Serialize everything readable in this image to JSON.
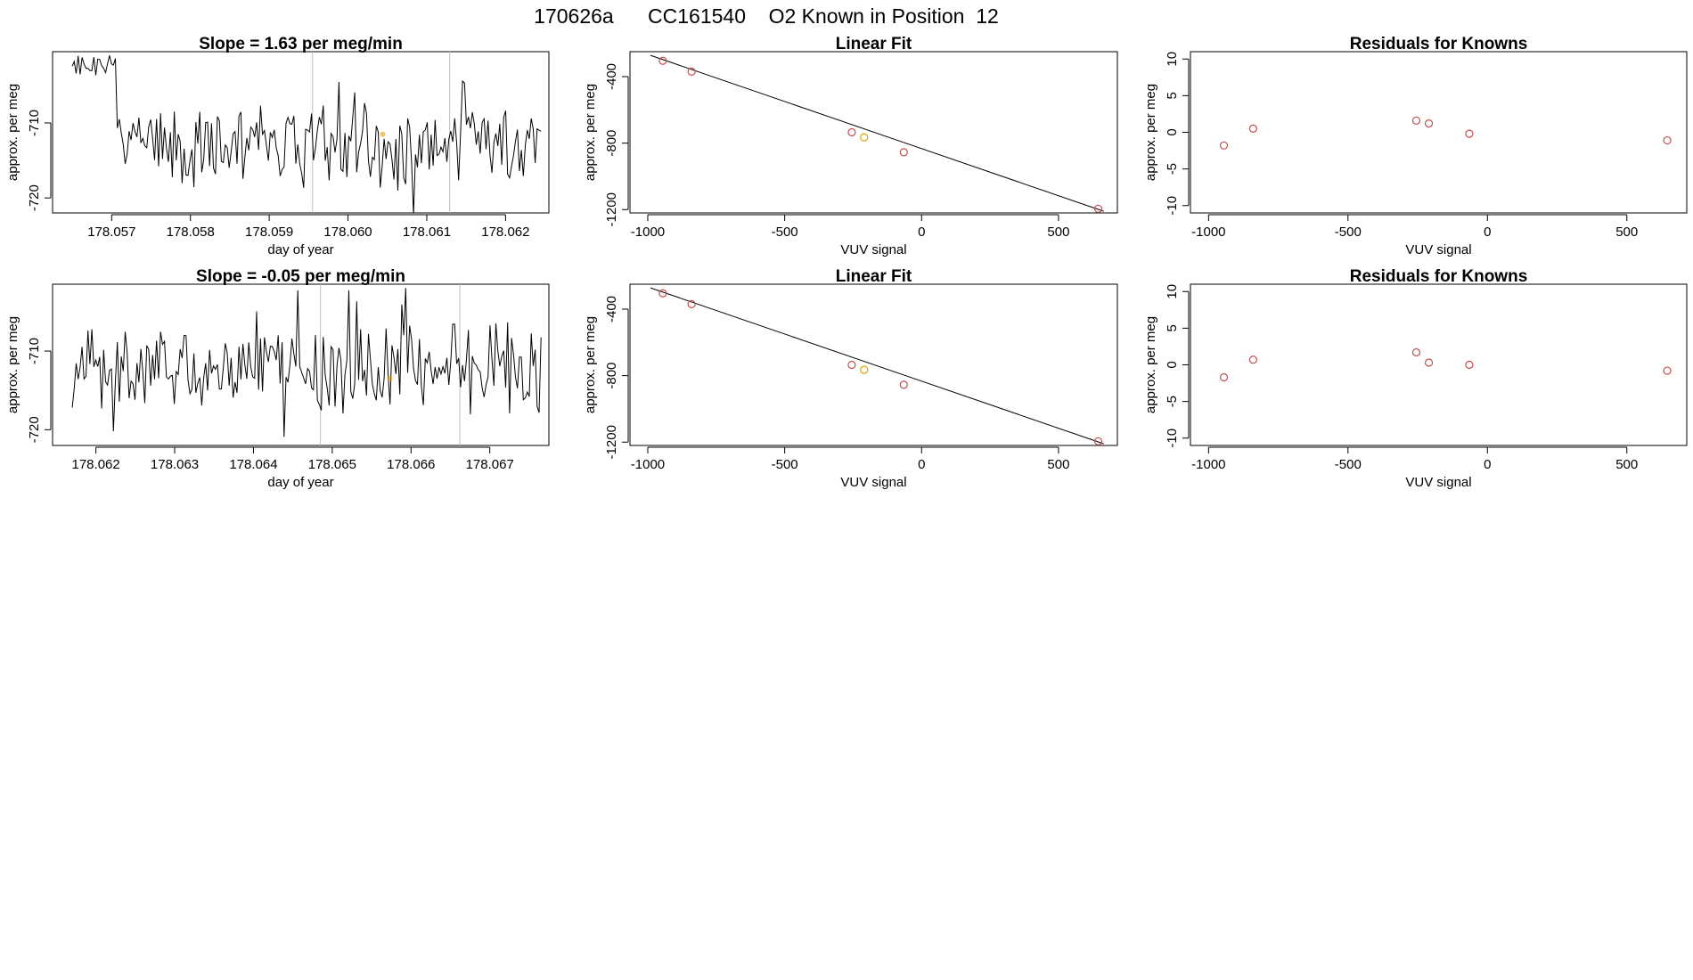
{
  "page_title": "170626a      CC161540    O2 Known in Position  12",
  "colors": {
    "line": "#000000",
    "points": "#c0504d",
    "highlight": "#e69f00",
    "grid": "#bfbfbf"
  },
  "chart_data": [
    {
      "type": "line",
      "title": "Slope =  1.63  per meg/min",
      "xlabel": "day of year",
      "ylabel": "approx. per meg",
      "xlim": [
        178.05625,
        178.06255
      ],
      "ylim": [
        -722,
        -700.5
      ],
      "x_ticks": [
        178.057,
        178.058,
        178.059,
        178.06,
        178.061,
        178.062
      ],
      "x_tick_labels": [
        "178.057",
        "178.058",
        "178.059",
        "178.060",
        "178.061",
        "178.062"
      ],
      "y_ticks": [
        -720,
        -710
      ],
      "y_tick_labels": [
        "-720",
        "-710"
      ],
      "vlines": [
        178.05955,
        178.06129
      ],
      "highlight_point": {
        "x": 178.06044,
        "y": -711.5
      },
      "signal": {
        "x_start": 178.0565,
        "x_end": 178.06245,
        "n": 240,
        "base": -713.2,
        "seed": 7,
        "initial_value": -702.5,
        "initial_span": 0.00055
      }
    },
    {
      "type": "scatter",
      "title": "Linear Fit",
      "xlabel": "VUV signal",
      "ylabel": "approx. per meg",
      "xlim": [
        -1065,
        715
      ],
      "ylim": [
        -1220,
        -250
      ],
      "x_ticks": [
        -1000,
        -500,
        0,
        500
      ],
      "x_tick_labels": [
        "-1000",
        "-500",
        "0",
        "500"
      ],
      "y_ticks": [
        -1200,
        -800,
        -400
      ],
      "y_tick_labels": [
        "-1200",
        "-800",
        "-400"
      ],
      "points": [
        {
          "x": -945,
          "y": -305,
          "highlight": false
        },
        {
          "x": -840,
          "y": -370,
          "highlight": false
        },
        {
          "x": -255,
          "y": -735,
          "highlight": false
        },
        {
          "x": -210,
          "y": -765,
          "highlight": true
        },
        {
          "x": -65,
          "y": -855,
          "highlight": false
        },
        {
          "x": 645,
          "y": -1195,
          "highlight": false
        }
      ],
      "fit_line": {
        "x": [
          -990,
          665
        ],
        "y": [
          -272,
          -1210
        ]
      }
    },
    {
      "type": "scatter",
      "title": "Residuals for Knowns",
      "xlabel": "VUV signal",
      "ylabel": "approx. per meg",
      "xlim": [
        -1065,
        715
      ],
      "ylim": [
        -11,
        11
      ],
      "x_ticks": [
        -1000,
        -500,
        0,
        500
      ],
      "x_tick_labels": [
        "-1000",
        "-500",
        "0",
        "500"
      ],
      "y_ticks": [
        -10,
        -5,
        0,
        5,
        10
      ],
      "y_tick_labels": [
        "-10",
        "-5",
        "0",
        "5",
        "10"
      ],
      "points": [
        {
          "x": -945,
          "y": -1.8
        },
        {
          "x": -840,
          "y": 0.5
        },
        {
          "x": -255,
          "y": 1.6
        },
        {
          "x": -210,
          "y": 1.2
        },
        {
          "x": -65,
          "y": -0.2
        },
        {
          "x": 645,
          "y": -1.1
        }
      ]
    },
    {
      "type": "line",
      "title": "Slope =  -0.05  per meg/min",
      "xlabel": "day of year",
      "ylabel": "approx. per meg",
      "xlim": [
        178.06145,
        178.06775
      ],
      "ylim": [
        -722,
        -701.5
      ],
      "x_ticks": [
        178.062,
        178.063,
        178.064,
        178.065,
        178.066,
        178.067
      ],
      "x_tick_labels": [
        "178.062",
        "178.063",
        "178.064",
        "178.065",
        "178.066",
        "178.067"
      ],
      "y_ticks": [
        -720,
        -710
      ],
      "y_tick_labels": [
        "-720",
        "-710"
      ],
      "vlines": [
        178.06485,
        178.06662
      ],
      "highlight_point": {
        "x": 178.06573,
        "y": -713.5
      },
      "signal": {
        "x_start": 178.0617,
        "x_end": 178.06765,
        "n": 240,
        "base": -712.2,
        "seed": 23,
        "initial_value": -712.5,
        "initial_span": 0
      }
    },
    {
      "type": "scatter",
      "title": "Linear Fit",
      "xlabel": "VUV signal",
      "ylabel": "approx. per meg",
      "xlim": [
        -1065,
        715
      ],
      "ylim": [
        -1220,
        -250
      ],
      "x_ticks": [
        -1000,
        -500,
        0,
        500
      ],
      "x_tick_labels": [
        "-1000",
        "-500",
        "0",
        "500"
      ],
      "y_ticks": [
        -1200,
        -800,
        -400
      ],
      "y_tick_labels": [
        "-1200",
        "-800",
        "-400"
      ],
      "points": [
        {
          "x": -945,
          "y": -305,
          "highlight": false
        },
        {
          "x": -840,
          "y": -370,
          "highlight": false
        },
        {
          "x": -255,
          "y": -735,
          "highlight": false
        },
        {
          "x": -210,
          "y": -765,
          "highlight": true
        },
        {
          "x": -65,
          "y": -855,
          "highlight": false
        },
        {
          "x": 645,
          "y": -1195,
          "highlight": false
        }
      ],
      "fit_line": {
        "x": [
          -990,
          665
        ],
        "y": [
          -272,
          -1210
        ]
      }
    },
    {
      "type": "scatter",
      "title": "Residuals for Knowns",
      "xlabel": "VUV signal",
      "ylabel": "approx. per meg",
      "xlim": [
        -1065,
        715
      ],
      "ylim": [
        -11,
        11
      ],
      "x_ticks": [
        -1000,
        -500,
        0,
        500
      ],
      "x_tick_labels": [
        "-1000",
        "-500",
        "0",
        "500"
      ],
      "y_ticks": [
        -10,
        -5,
        0,
        5,
        10
      ],
      "y_tick_labels": [
        "-10",
        "-5",
        "0",
        "5",
        "10"
      ],
      "points": [
        {
          "x": -945,
          "y": -1.7
        },
        {
          "x": -840,
          "y": 0.7
        },
        {
          "x": -255,
          "y": 1.7
        },
        {
          "x": -210,
          "y": 0.3
        },
        {
          "x": -65,
          "y": 0.0
        },
        {
          "x": 645,
          "y": -0.8
        }
      ]
    }
  ]
}
